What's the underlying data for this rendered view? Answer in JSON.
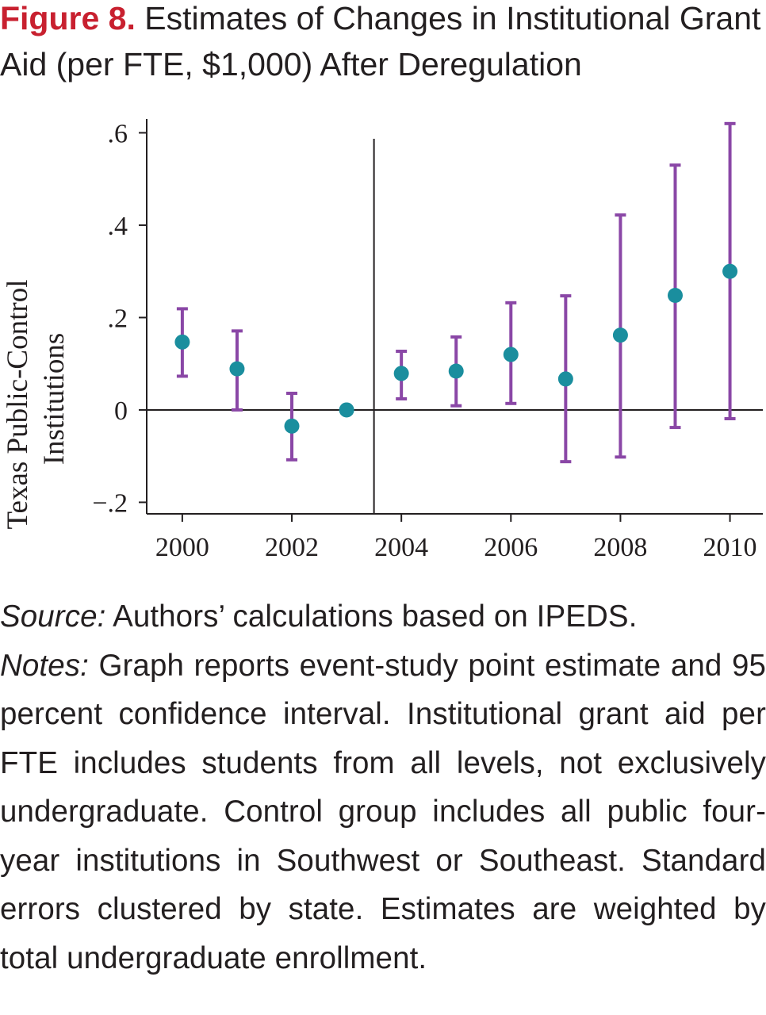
{
  "figure": {
    "label": "Figure 8.",
    "title": "Estimates of Changes in Institutional Grant Aid (per FTE, $1,000) After Deregulation"
  },
  "chart_data": {
    "type": "scatter",
    "subtype": "event-study point estimates with 95% confidence intervals",
    "ylabel_lines": [
      "Texas Public-Control",
      "Institutions"
    ],
    "xlabel": "",
    "x_ticks": [
      2000,
      2002,
      2004,
      2006,
      2008,
      2010
    ],
    "y_ticks": [
      -0.2,
      0,
      0.2,
      0.4,
      0.6
    ],
    "y_tick_labels": [
      "−.2",
      "0",
      ".2",
      ".4",
      ".6"
    ],
    "xlim": [
      1999.35,
      2010.6
    ],
    "ylim": [
      -0.225,
      0.63
    ],
    "reference_lines": {
      "vertical_x": 2003.5,
      "horizontal_y": 0
    },
    "grid": false,
    "colors": {
      "point": "#1a8e9e",
      "ci": "#8a47a6",
      "axis": "#231f20"
    },
    "series": [
      {
        "x": [
          2000,
          2001,
          2002,
          2003,
          2004,
          2005,
          2006,
          2007,
          2008,
          2009,
          2010
        ],
        "estimate": [
          0.147,
          0.089,
          -0.035,
          0.0,
          0.079,
          0.084,
          0.12,
          0.067,
          0.162,
          0.248,
          0.3
        ],
        "ci_low": [
          0.073,
          0.0,
          -0.108,
          null,
          0.024,
          0.009,
          0.014,
          -0.112,
          -0.102,
          -0.038,
          -0.019
        ],
        "ci_high": [
          0.219,
          0.171,
          0.036,
          null,
          0.127,
          0.158,
          0.232,
          0.247,
          0.422,
          0.53,
          0.62
        ]
      }
    ]
  },
  "caption": {
    "source_label": "Source:",
    "source_text": "Authors’ calculations based on IPEDS.",
    "notes_label": "Notes:",
    "notes_text": "Graph reports event-study point estimate and 95 percent confidence interval. Institutional grant aid per FTE includes students from all levels, not exclusively undergraduate. Control group in­cludes all public four-year institutions in South­west or Southeast. Standard errors clustered by state. Estimates are weighted by total undergrad­uate enrollment."
  }
}
